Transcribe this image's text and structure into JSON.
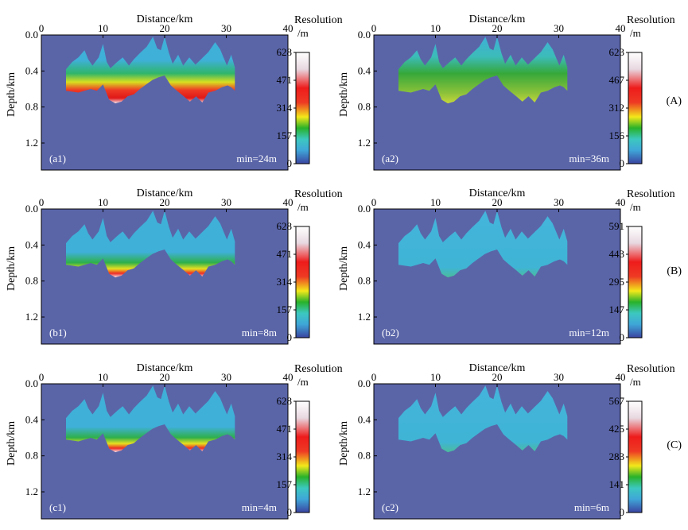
{
  "figure": {
    "x_axis_title": "Distance/km",
    "y_axis_title": "Depth/km",
    "colorbar_title": "Resolution",
    "colorbar_unit": "/m",
    "x_ticks": [
      "0",
      "10",
      "20",
      "30",
      "40"
    ],
    "y_ticks": [
      "0.0",
      "0.4",
      "0.8",
      "1.2"
    ],
    "background_color": "#5A65A8",
    "colormap": [
      "#3a44a0",
      "#3fa6d8",
      "#3cc8c0",
      "#28b22a",
      "#f2e81a",
      "#ee3a24",
      "#ee1c1c",
      "#e8d8e0",
      "#ffffff"
    ]
  },
  "rows": [
    {
      "label": "(A)"
    },
    {
      "label": "(B)"
    },
    {
      "label": "(C)"
    }
  ],
  "panels": [
    {
      "id": "a1",
      "label": "(a1)",
      "min_text": "min=24m",
      "cb_ticks": [
        "628",
        "471",
        "314",
        "157",
        "0"
      ]
    },
    {
      "id": "a2",
      "label": "(a2)",
      "min_text": "min=36m",
      "cb_ticks": [
        "623",
        "467",
        "312",
        "156",
        "0"
      ]
    },
    {
      "id": "b1",
      "label": "(b1)",
      "min_text": "min=8m",
      "cb_ticks": [
        "628",
        "471",
        "314",
        "157",
        "0"
      ]
    },
    {
      "id": "b2",
      "label": "(b2)",
      "min_text": "min=12m",
      "cb_ticks": [
        "591",
        "443",
        "295",
        "147",
        "0"
      ]
    },
    {
      "id": "c1",
      "label": "(c1)",
      "min_text": "min=4m",
      "cb_ticks": [
        "628",
        "471",
        "314",
        "157",
        "0"
      ]
    },
    {
      "id": "c2",
      "label": "(c2)",
      "min_text": "min=6m",
      "cb_ticks": [
        "567",
        "425",
        "283",
        "141",
        "0"
      ]
    }
  ],
  "chart_data": [
    {
      "type": "heatmap",
      "id": "a1",
      "title": "(a1)",
      "xlabel": "Distance/km",
      "ylabel": "Depth/km",
      "xlim": [
        0,
        40
      ],
      "ylim": [
        1.5,
        0.0
      ],
      "colorbar": {
        "label": "Resolution /m",
        "range": [
          0,
          628
        ]
      },
      "annotation": "min=24m"
    },
    {
      "type": "heatmap",
      "id": "a2",
      "title": "(a2)",
      "xlabel": "Distance/km",
      "ylabel": "Depth/km",
      "xlim": [
        0,
        40
      ],
      "ylim": [
        1.5,
        0.0
      ],
      "colorbar": {
        "label": "Resolution /m",
        "range": [
          0,
          623
        ]
      },
      "annotation": "min=36m"
    },
    {
      "type": "heatmap",
      "id": "b1",
      "title": "(b1)",
      "xlabel": "Distance/km",
      "ylabel": "Depth/km",
      "xlim": [
        0,
        40
      ],
      "ylim": [
        1.5,
        0.0
      ],
      "colorbar": {
        "label": "Resolution /m",
        "range": [
          0,
          628
        ]
      },
      "annotation": "min=8m"
    },
    {
      "type": "heatmap",
      "id": "b2",
      "title": "(b2)",
      "xlabel": "Distance/km",
      "ylabel": "Depth/km",
      "xlim": [
        0,
        40
      ],
      "ylim": [
        1.5,
        0.0
      ],
      "colorbar": {
        "label": "Resolution /m",
        "range": [
          0,
          591
        ]
      },
      "annotation": "min=12m"
    },
    {
      "type": "heatmap",
      "id": "c1",
      "title": "(c1)",
      "xlabel": "Distance/km",
      "ylabel": "Depth/km",
      "xlim": [
        0,
        40
      ],
      "ylim": [
        1.5,
        0.0
      ],
      "colorbar": {
        "label": "Resolution /m",
        "range": [
          0,
          628
        ]
      },
      "annotation": "min=4m"
    },
    {
      "type": "heatmap",
      "id": "c2",
      "title": "(c2)",
      "xlabel": "Distance/km",
      "ylabel": "Depth/km",
      "xlim": [
        0,
        40
      ],
      "ylim": [
        1.5,
        0.0
      ],
      "colorbar": {
        "label": "Resolution /m",
        "range": [
          0,
          567
        ]
      },
      "annotation": "min=6m"
    }
  ]
}
